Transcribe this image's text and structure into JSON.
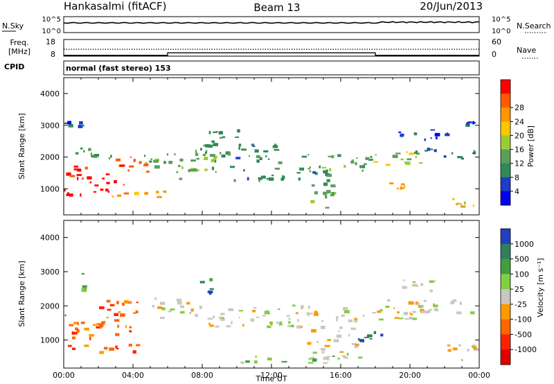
{
  "header": {
    "station": "Hankasalmi (fitACF)",
    "beam": "Beam 13",
    "date": "20/Jun/2013"
  },
  "noise_panel": {
    "left_label": "N.Sky",
    "right_label": "N.Search",
    "left_ticks": [
      "10^5",
      "10^0"
    ],
    "right_ticks": [
      "10^5",
      "10^0"
    ]
  },
  "freq_panel": {
    "left_label_1": "Freq.",
    "left_label_2": "[MHz]",
    "left_ticks": [
      "18",
      "8"
    ],
    "right_label": "Nave",
    "right_ticks": [
      "60",
      "0"
    ],
    "cpid_label": "CPID",
    "nave_steps": [
      {
        "from_h": 0,
        "to_h": 6,
        "nave": 3
      },
      {
        "from_h": 6,
        "to_h": 18,
        "nave": 12
      },
      {
        "from_h": 18,
        "to_h": 24,
        "nave": 3
      }
    ],
    "freq_mhz": 12.1
  },
  "cpid_text": "normal (fast stereo) 153",
  "colors": {
    "power": [
      "#0000f0",
      "#1e3cc8",
      "#2e8b57",
      "#5a9e5a",
      "#9acd32",
      "#ffc800",
      "#ff9600",
      "#ff5a00",
      "#ff0000"
    ],
    "velocity": [
      "#2040c0",
      "#2f7f5f",
      "#3f9f3f",
      "#7fcf3f",
      "#c8c8c0",
      "#ff9900",
      "#ff6600",
      "#ff2200",
      "#e00000"
    ]
  },
  "chart_data": [
    {
      "type": "heatmap",
      "name": "power",
      "ylabel": "Slant Range [km]",
      "ylim": [
        180,
        4500
      ],
      "xlim": [
        0,
        24
      ],
      "yticks": [
        "1000",
        "2000",
        "3000",
        "4000"
      ],
      "colorbar": {
        "label": "Power [dB]",
        "ticks": [
          "4",
          "8",
          "12",
          "16",
          "20",
          "24",
          "28"
        ],
        "range": [
          0,
          30
        ]
      },
      "regions": [
        {
          "t0": 0.0,
          "t1": 2.2,
          "r0": 1050,
          "r1": 1750,
          "level": 8
        },
        {
          "t0": 0.0,
          "t1": 2.0,
          "r0": 700,
          "r1": 1050,
          "level": 9
        },
        {
          "t0": 2.0,
          "t1": 3.6,
          "r0": 850,
          "r1": 1500,
          "level": 8
        },
        {
          "t0": 3.0,
          "t1": 5.0,
          "r0": 1450,
          "r1": 2150,
          "level": 7
        },
        {
          "t0": 2.5,
          "t1": 6.0,
          "r0": 650,
          "r1": 950,
          "level": 6
        },
        {
          "t0": 0.5,
          "t1": 3.0,
          "r0": 1800,
          "r1": 2300,
          "level": 3
        },
        {
          "t0": 0.0,
          "t1": 1.3,
          "r0": 2850,
          "r1": 3150,
          "level": 1
        },
        {
          "t0": 4.5,
          "t1": 9.0,
          "r0": 1250,
          "r1": 2150,
          "level": 3
        },
        {
          "t0": 7.5,
          "t1": 13.0,
          "r0": 1750,
          "r1": 2450,
          "level": 2
        },
        {
          "t0": 8.0,
          "t1": 10.5,
          "r0": 2450,
          "r1": 2900,
          "level": 2
        },
        {
          "t0": 9.5,
          "t1": 15.5,
          "r0": 1200,
          "r1": 1750,
          "level": 2
        },
        {
          "t0": 13.5,
          "t1": 18.0,
          "r0": 1500,
          "r1": 2100,
          "level": 3
        },
        {
          "t0": 14.2,
          "t1": 15.8,
          "r0": 350,
          "r1": 1250,
          "level": 3
        },
        {
          "t0": 17.5,
          "t1": 21.0,
          "r0": 1700,
          "r1": 2200,
          "level": 4
        },
        {
          "t0": 18.5,
          "t1": 19.8,
          "r0": 850,
          "r1": 1300,
          "level": 6
        },
        {
          "t0": 20.0,
          "t1": 24.0,
          "r0": 1900,
          "r1": 2300,
          "level": 2
        },
        {
          "t0": 22.0,
          "t1": 24.0,
          "r0": 300,
          "r1": 750,
          "level": 5
        },
        {
          "t0": 19.0,
          "t1": 22.5,
          "r0": 2500,
          "r1": 2900,
          "level": 1
        },
        {
          "t0": 23.0,
          "t1": 24.0,
          "r0": 2950,
          "r1": 3150,
          "level": 1
        }
      ]
    },
    {
      "type": "heatmap",
      "name": "velocity",
      "ylabel": "Slant Range [km]",
      "xlabel": "Time UT",
      "ylim": [
        180,
        4500
      ],
      "xlim": [
        0,
        24
      ],
      "yticks": [
        "1000",
        "2000",
        "3000",
        "4000"
      ],
      "xticks": [
        "00:00",
        "04:00",
        "08:00",
        "12:00",
        "16:00",
        "20:00",
        "00:00"
      ],
      "colorbar": {
        "label": "Velocity [m s⁻¹]",
        "ticks": [
          "1000",
          "500",
          "100",
          "25",
          "-25",
          "-100",
          "-500",
          "-1000"
        ],
        "range": [
          -1200,
          1200
        ]
      },
      "regions": [
        {
          "t0": 0.0,
          "t1": 2.2,
          "r0": 700,
          "r1": 1750,
          "level": 6
        },
        {
          "t0": 2.0,
          "t1": 4.8,
          "r0": 1100,
          "r1": 2200,
          "level": 6
        },
        {
          "t0": 2.0,
          "t1": 4.5,
          "r0": 550,
          "r1": 900,
          "level": 6
        },
        {
          "t0": 5.0,
          "t1": 8.0,
          "r0": 1600,
          "r1": 2300,
          "level": 4
        },
        {
          "t0": 7.8,
          "t1": 8.8,
          "r0": 2300,
          "r1": 2900,
          "level": 1
        },
        {
          "t0": 8.0,
          "t1": 15.5,
          "r0": 1300,
          "r1": 2050,
          "level": 4
        },
        {
          "t0": 14.0,
          "t1": 17.5,
          "r0": 400,
          "r1": 1400,
          "level": 4
        },
        {
          "t0": 15.5,
          "t1": 20.5,
          "r0": 1500,
          "r1": 2000,
          "level": 4
        },
        {
          "t0": 16.8,
          "t1": 18.5,
          "r0": 900,
          "r1": 1400,
          "level": 1
        },
        {
          "t0": 18.5,
          "t1": 24.0,
          "r0": 1700,
          "r1": 2200,
          "level": 4
        },
        {
          "t0": 22.0,
          "t1": 24.0,
          "r0": 350,
          "r1": 900,
          "level": 4
        },
        {
          "t0": 0.8,
          "t1": 1.5,
          "r0": 2400,
          "r1": 3200,
          "level": 3
        },
        {
          "t0": 10.0,
          "t1": 16.0,
          "r0": 300,
          "r1": 550,
          "level": 3
        },
        {
          "t0": 19.5,
          "t1": 21.5,
          "r0": 2400,
          "r1": 2900,
          "level": 4
        }
      ]
    }
  ]
}
